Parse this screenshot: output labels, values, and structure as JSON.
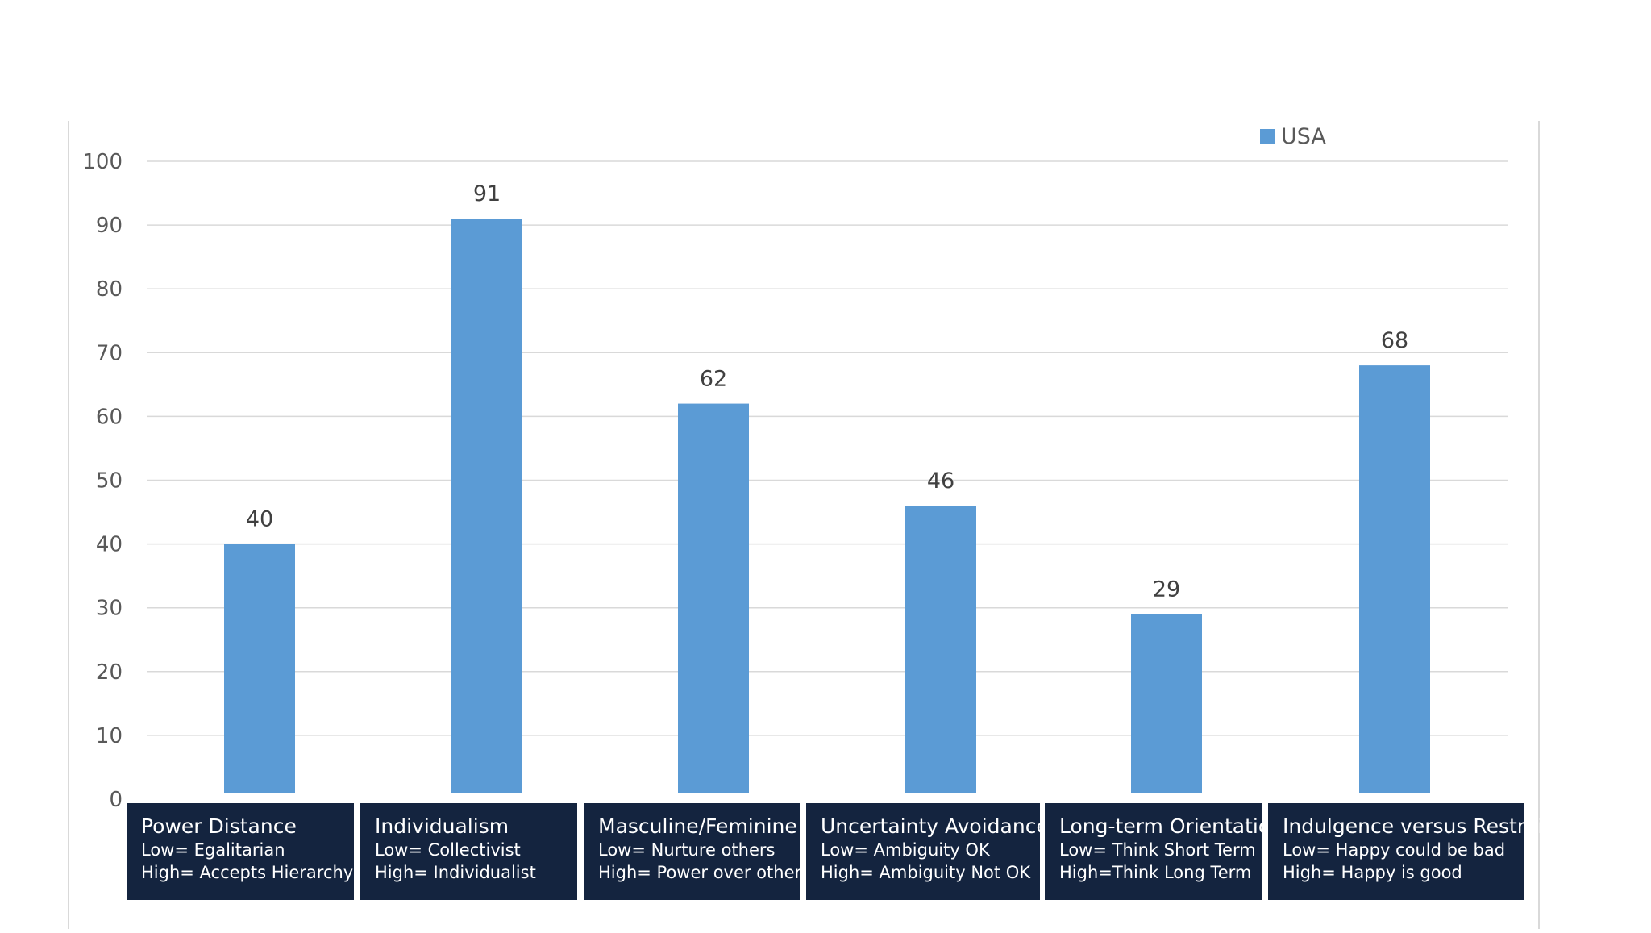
{
  "chart_data": {
    "type": "bar",
    "title": "",
    "xlabel": "",
    "ylabel": "",
    "ylim": [
      0,
      100
    ],
    "yticks": [
      0,
      10,
      20,
      30,
      40,
      50,
      60,
      70,
      80,
      90,
      100
    ],
    "grid": true,
    "legend": {
      "position": "top-right",
      "entries": [
        "USA"
      ]
    },
    "categories": [
      "Power Distance",
      "Individualism",
      "Masculine/Feminine",
      "Uncertainty Avoidance",
      "Long-term Orientation",
      "Indulgence versus Restraint"
    ],
    "series": [
      {
        "name": "USA",
        "color": "#5b9bd5",
        "values": [
          40,
          91,
          62,
          46,
          29,
          68
        ]
      }
    ],
    "category_boxes": [
      {
        "title": "Power Distance",
        "low": "Low= Egalitarian",
        "high": "High= Accepts Hierarchy"
      },
      {
        "title": "Individualism",
        "low": "Low= Collectivist",
        "high": "High= Individualist"
      },
      {
        "title": "Masculine/Feminine",
        "low": "Low= Nurture others",
        "high": "High= Power over others"
      },
      {
        "title": "Uncertainty Avoidance",
        "low": "Low= Ambiguity OK",
        "high": "High= Ambiguity Not OK"
      },
      {
        "title": "Long-term Orientation",
        "low": "Low= Think Short Term",
        "high": "High=Think Long Term"
      },
      {
        "title": "Indulgence versus Restraint",
        "low": "Low= Happy could be bad",
        "high": "High= Happy is good"
      }
    ],
    "colors": {
      "bar": "#5b9bd5",
      "box_fill": "#14243f",
      "box_text": "#ffffff",
      "grid": "#d9d9d9",
      "axis_text": "#595959",
      "label_text": "#404040",
      "frame": "#d9d9d9"
    }
  }
}
